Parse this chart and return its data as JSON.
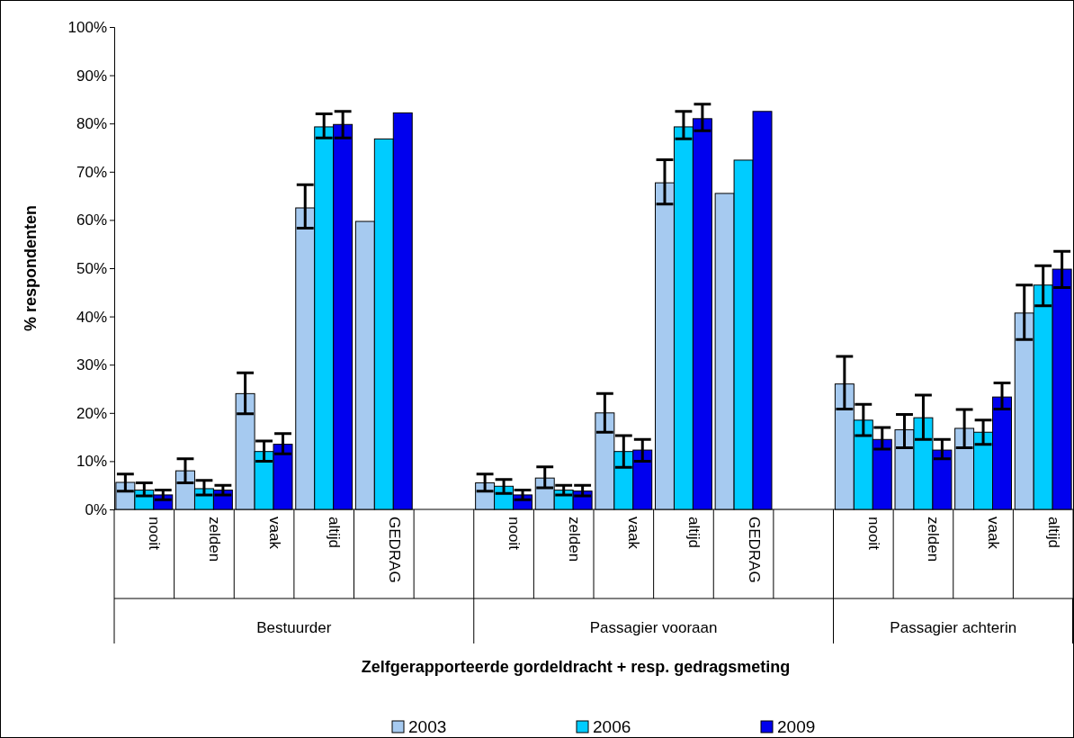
{
  "chart_data": {
    "type": "bar",
    "xlabel": "Zelfgerapporteerde gordeldracht + resp. gedragsmeting",
    "ylabel": "% respondenten",
    "categories": [
      "nooit",
      "zelden",
      "vaak",
      "altijd",
      "GEDRAG",
      null,
      "nooit",
      "zelden",
      "vaak",
      "altijd",
      "GEDRAG",
      null,
      "nooit",
      "zelden",
      "vaak",
      "altijd"
    ],
    "annotations": [
      "Bestuurder",
      "Passagier vooraan",
      "Passagier achterin"
    ],
    "series": [
      {
        "name": "2003",
        "color": "#a6caf0",
        "values": [
          5.6,
          8,
          24,
          62.5,
          59.7,
          null,
          5.5,
          6.5,
          20,
          67.7,
          65.5,
          null,
          26,
          16.5,
          16.8,
          40.7
        ],
        "errors": [
          [
            3.8,
            7.3
          ],
          [
            5.5,
            10.5
          ],
          [
            19.8,
            28.3
          ],
          [
            58.3,
            67.3
          ],
          null,
          null,
          [
            3.8,
            7.3
          ],
          [
            4.5,
            8.8
          ],
          [
            16,
            24
          ],
          [
            63.3,
            72.5
          ],
          null,
          null,
          [
            20.8,
            31.7
          ],
          [
            12.8,
            19.7
          ],
          [
            12.8,
            20.7
          ],
          [
            35.2,
            46.5
          ]
        ]
      },
      {
        "name": "2006",
        "color": "#00ccff",
        "values": [
          4,
          4.3,
          12,
          79.3,
          76.8,
          null,
          4.8,
          4,
          12,
          79.3,
          72.4,
          null,
          18.5,
          19,
          16,
          46.5
        ],
        "errors": [
          [
            2.8,
            5.5
          ],
          [
            3,
            6
          ],
          [
            10,
            14.2
          ],
          [
            77,
            82
          ],
          null,
          null,
          [
            3.3,
            6.2
          ],
          [
            3,
            5
          ],
          [
            8.7,
            15.3
          ],
          [
            76.8,
            82.5
          ],
          null,
          null,
          [
            15.3,
            21.8
          ],
          [
            14.5,
            23.7
          ],
          [
            13.5,
            18.5
          ],
          [
            42.2,
            50.5
          ]
        ]
      },
      {
        "name": "2009",
        "color": "#0000ee",
        "values": [
          3,
          4,
          13.5,
          79.8,
          82.2,
          null,
          3,
          3.8,
          12.3,
          81,
          82.5,
          null,
          14.5,
          12.3,
          23.3,
          49.8
        ],
        "errors": [
          [
            2,
            4
          ],
          [
            3,
            5
          ],
          [
            11.5,
            15.7
          ],
          [
            77,
            82.5
          ],
          null,
          null,
          [
            2,
            4
          ],
          [
            2.8,
            5
          ],
          [
            10,
            14.5
          ],
          [
            78.5,
            84
          ],
          null,
          null,
          [
            12.5,
            17
          ],
          [
            10.5,
            14.5
          ],
          [
            20.8,
            26.2
          ],
          [
            46,
            53.5
          ]
        ]
      }
    ],
    "ylim": [
      0,
      100
    ],
    "yticks": [
      {
        "value": 0,
        "label": "0%"
      },
      {
        "value": 10,
        "label": "10%"
      },
      {
        "value": 20,
        "label": "20%"
      },
      {
        "value": 30,
        "label": "30%"
      },
      {
        "value": 40,
        "label": "40%"
      },
      {
        "value": 50,
        "label": "50%"
      },
      {
        "value": 60,
        "label": "60%"
      },
      {
        "value": 70,
        "label": "70%"
      },
      {
        "value": 80,
        "label": "80%"
      },
      {
        "value": 90,
        "label": "90%"
      },
      {
        "value": 100,
        "label": "100%"
      }
    ],
    "grid": false,
    "legend": "bottom"
  }
}
